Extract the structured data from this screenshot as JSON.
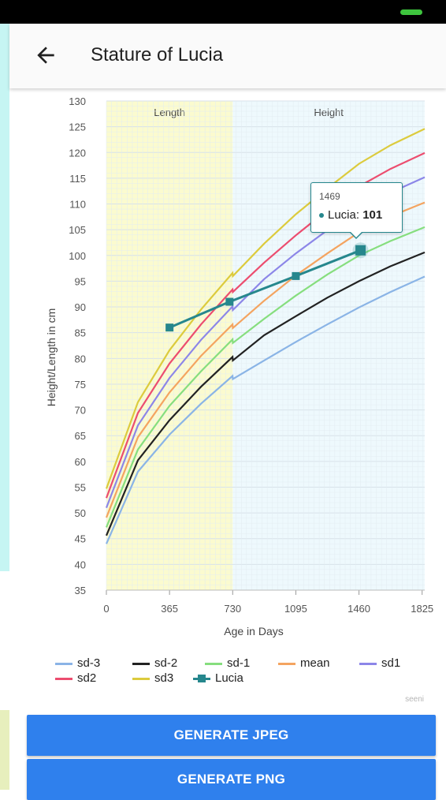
{
  "app": {
    "title": "Stature of Lucia",
    "credit": "seeni",
    "buttons": {
      "jpeg": "GENERATE JPEG",
      "png": "GENERATE PNG"
    }
  },
  "tooltip": {
    "x_label": "1469",
    "series": "Lucia",
    "value_prefix": "Lucia: ",
    "value": "101"
  },
  "chart_data": {
    "type": "line",
    "title": "",
    "xlabel": "Age in Days",
    "ylabel": "Height/Length in cm",
    "xlim": [
      0,
      1840
    ],
    "ylim": [
      35,
      130
    ],
    "x_ticks": [
      0,
      365,
      730,
      1095,
      1460,
      1825
    ],
    "y_ticks": [
      35,
      40,
      45,
      50,
      55,
      60,
      65,
      70,
      75,
      80,
      85,
      90,
      95,
      100,
      105,
      110,
      115,
      120,
      125,
      130
    ],
    "bands": [
      {
        "label": "Length",
        "from": 0,
        "to": 730,
        "color": "#fbfbcf"
      },
      {
        "label": "Height",
        "from": 730,
        "to": 1840,
        "color": "#eef9fd"
      }
    ],
    "x": [
      0,
      182,
      365,
      547,
      729,
      731,
      912,
      1095,
      1277,
      1460,
      1642,
      1840
    ],
    "series": [
      {
        "name": "sd-3",
        "color": "#8ab4e6",
        "values": [
          44.0,
          58.0,
          65.2,
          71.2,
          76.6,
          76.0,
          79.6,
          83.2,
          86.6,
          89.9,
          92.9,
          95.9
        ]
      },
      {
        "name": "sd-2",
        "color": "#222222",
        "values": [
          45.6,
          60.2,
          68.0,
          74.5,
          80.3,
          79.6,
          84.5,
          88.2,
          91.8,
          95.0,
          97.9,
          100.6
        ]
      },
      {
        "name": "sd-1",
        "color": "#86de7e",
        "values": [
          47.2,
          62.3,
          70.8,
          77.5,
          83.7,
          83.0,
          87.7,
          92.2,
          96.3,
          100.0,
          102.8,
          105.5
        ]
      },
      {
        "name": "mean",
        "color": "#f4a460",
        "values": [
          49.1,
          64.7,
          73.4,
          80.5,
          86.6,
          85.9,
          91.2,
          96.1,
          100.4,
          104.5,
          107.6,
          110.3
        ]
      },
      {
        "name": "sd1",
        "color": "#8c86e8",
        "values": [
          51.0,
          67.0,
          76.2,
          83.6,
          90.1,
          89.4,
          95.4,
          100.4,
          104.9,
          109.1,
          112.2,
          115.2
        ]
      },
      {
        "name": "sd2",
        "color": "#ec4d6f",
        "values": [
          52.9,
          69.4,
          79.0,
          86.6,
          93.4,
          92.9,
          98.6,
          103.9,
          108.8,
          113.4,
          116.8,
          119.9
        ]
      },
      {
        "name": "sd3",
        "color": "#dccb3d",
        "values": [
          54.7,
          71.5,
          81.6,
          89.5,
          96.6,
          96.0,
          102.3,
          108.0,
          113.0,
          117.8,
          121.4,
          124.6
        ]
      }
    ],
    "points_series": {
      "name": "Lucia",
      "color": "#26878d",
      "x": [
        365,
        712,
        1095,
        1469
      ],
      "y": [
        86,
        91,
        96,
        101
      ]
    },
    "legend": [
      {
        "name": "sd-3",
        "color": "#8ab4e6"
      },
      {
        "name": "sd-2",
        "color": "#222222"
      },
      {
        "name": "sd-1",
        "color": "#86de7e"
      },
      {
        "name": "mean",
        "color": "#f4a460"
      },
      {
        "name": "sd1",
        "color": "#8c86e8"
      },
      {
        "name": "sd2",
        "color": "#ec4d6f"
      },
      {
        "name": "sd3",
        "color": "#dccb3d"
      },
      {
        "name": "Lucia",
        "color": "#26878d",
        "marker": "square"
      }
    ]
  }
}
